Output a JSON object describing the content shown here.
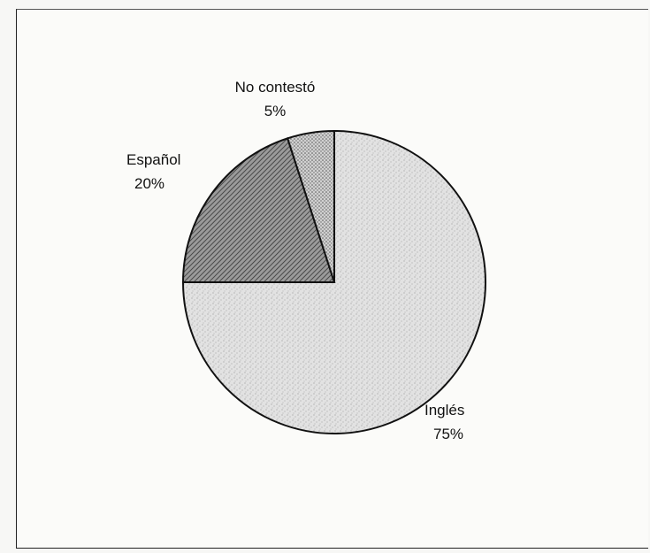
{
  "chart_data": {
    "type": "pie",
    "title": "",
    "slices": [
      {
        "label": "Inglés",
        "value": 75,
        "value_label": "75%",
        "fill": "#dcdcdc"
      },
      {
        "label": "Español",
        "value": 20,
        "value_label": "20%",
        "fill": "#8a8a8a"
      },
      {
        "label": "No contestó",
        "value": 5,
        "value_label": "5%",
        "fill": "#b8b8b8"
      }
    ],
    "start_angle_deg": 0,
    "direction": "clockwise",
    "legend": "none",
    "label_placement": "outside"
  }
}
